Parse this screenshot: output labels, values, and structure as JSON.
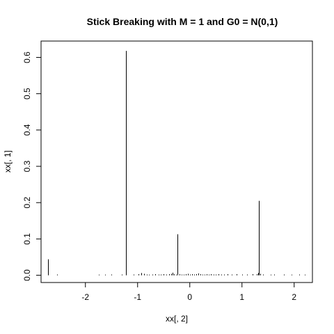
{
  "chart_data": {
    "type": "line",
    "subtype": "spike",
    "title": "Stick Breaking with M = 1 and G0 = N(0,1)",
    "xlabel": "xx[, 2]",
    "ylabel": "xx[, 1]",
    "xlim": [
      -2.85,
      2.35
    ],
    "ylim": [
      -0.02,
      0.645
    ],
    "x_ticks": [
      -2,
      -1,
      0,
      1,
      2
    ],
    "x_tick_labels": [
      "-2",
      "-1",
      "0",
      "1",
      "2"
    ],
    "y_ticks": [
      0.0,
      0.1,
      0.2,
      0.3,
      0.4,
      0.5,
      0.6
    ],
    "y_tick_labels": [
      "0.0",
      "0.1",
      "0.2",
      "0.3",
      "0.4",
      "0.5",
      "0.6"
    ],
    "grid": false,
    "legend": "none",
    "series": [
      {
        "x": [
          -2.72,
          -2.55,
          -1.75,
          -1.62,
          -1.5,
          -1.3,
          -1.23,
          -1.08,
          -0.98,
          -0.93,
          -0.88,
          -0.83,
          -0.78,
          -0.72,
          -0.66,
          -0.6,
          -0.55,
          -0.5,
          -0.45,
          -0.4,
          -0.36,
          -0.33,
          -0.3,
          -0.27,
          -0.24,
          -0.2,
          -0.16,
          -0.12,
          -0.08,
          -0.04,
          0.0,
          0.04,
          0.08,
          0.12,
          0.16,
          0.2,
          0.24,
          0.28,
          0.32,
          0.36,
          0.4,
          0.45,
          0.5,
          0.55,
          0.6,
          0.65,
          0.72,
          0.8,
          0.9,
          1.0,
          1.1,
          1.2,
          1.28,
          1.31,
          1.33,
          1.35,
          1.4,
          1.55,
          1.62,
          1.8,
          1.95,
          2.1,
          2.2
        ],
        "y": [
          0.044,
          0.002,
          0.001,
          0.001,
          0.002,
          0.002,
          0.618,
          0.002,
          0.003,
          0.006,
          0.004,
          0.002,
          0.001,
          0.002,
          0.003,
          0.002,
          0.002,
          0.003,
          0.002,
          0.003,
          0.004,
          0.007,
          0.003,
          0.002,
          0.113,
          0.003,
          0.002,
          0.002,
          0.003,
          0.004,
          0.002,
          0.003,
          0.002,
          0.003,
          0.005,
          0.003,
          0.002,
          0.002,
          0.003,
          0.002,
          0.003,
          0.002,
          0.002,
          0.003,
          0.002,
          0.002,
          0.003,
          0.002,
          0.003,
          0.002,
          0.002,
          0.003,
          0.003,
          0.006,
          0.205,
          0.004,
          0.002,
          0.001,
          0.002,
          0.002,
          0.001,
          0.002,
          0.001
        ]
      }
    ]
  }
}
